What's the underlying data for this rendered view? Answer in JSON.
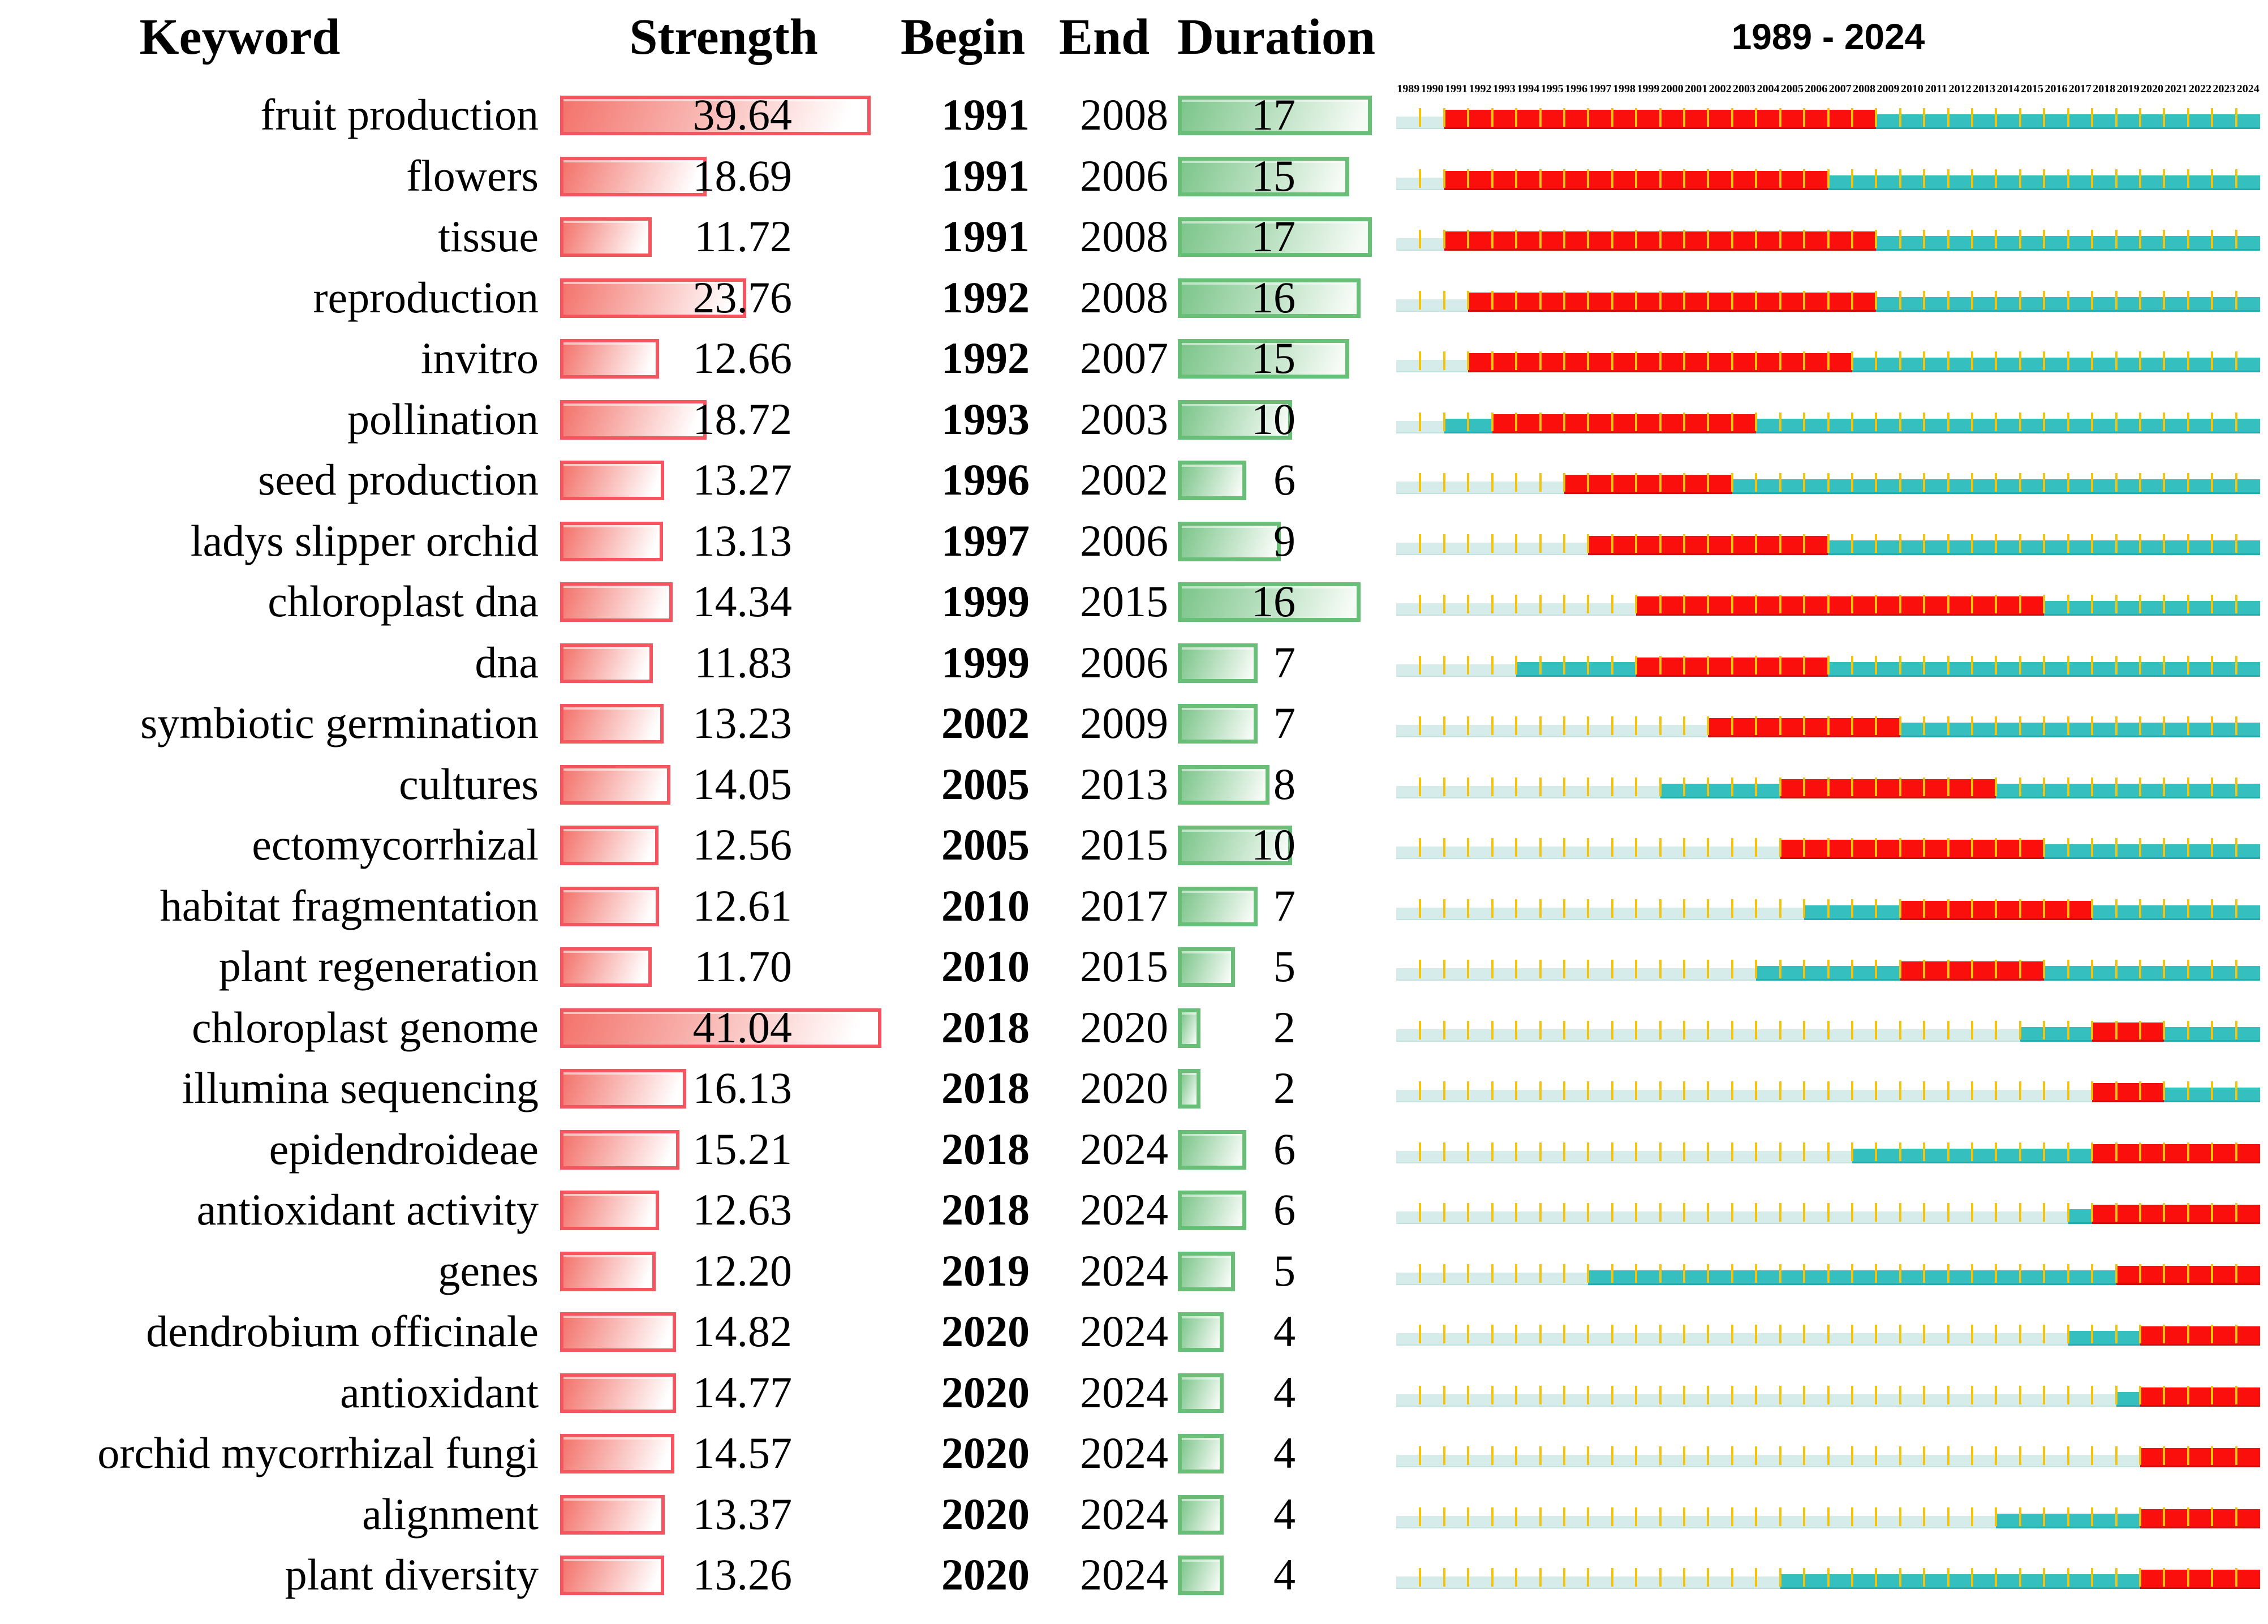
{
  "header": {
    "keyword": "Keyword",
    "strength": "Strength",
    "begin": "Begin",
    "end": "End",
    "duration": "Duration",
    "timeline_title": "1989 - 2024"
  },
  "colors": {
    "burst_red": "#fa0f0c",
    "presence_teal": "#35bfbf",
    "pre_appearance_pale": "#d5eceb",
    "year_tick_gold": "#f2c410",
    "strength_bar_border": "#f4555f",
    "strength_bar_fill": "#f3736b",
    "duration_bar_border": "#69bf77",
    "duration_bar_fill": "#7cc58a"
  },
  "chart_data": {
    "type": "table",
    "subtype": "keyword-burst-timeline",
    "title": "1989 - 2024",
    "columns": [
      "Keyword",
      "Strength",
      "Begin",
      "End",
      "Duration",
      "1989 - 2024"
    ],
    "x_axis": {
      "start": 1989,
      "end": 2024
    },
    "years": [
      1989,
      1990,
      1991,
      1992,
      1993,
      1994,
      1995,
      1996,
      1997,
      1998,
      1999,
      2000,
      2001,
      2002,
      2003,
      2004,
      2005,
      2006,
      2007,
      2008,
      2009,
      2010,
      2011,
      2012,
      2013,
      2014,
      2015,
      2016,
      2017,
      2018,
      2019,
      2020,
      2021,
      2022,
      2023,
      2024
    ],
    "rows": [
      {
        "keyword": "fruit production",
        "strength": "39.64",
        "begin": "1991",
        "end": "2008",
        "duration": "17",
        "first_year": 1991
      },
      {
        "keyword": "flowers",
        "strength": "18.69",
        "begin": "1991",
        "end": "2006",
        "duration": "15",
        "first_year": 1991
      },
      {
        "keyword": "tissue",
        "strength": "11.72",
        "begin": "1991",
        "end": "2008",
        "duration": "17",
        "first_year": 1991
      },
      {
        "keyword": "reproduction",
        "strength": "23.76",
        "begin": "1992",
        "end": "2008",
        "duration": "16",
        "first_year": 1992
      },
      {
        "keyword": "invitro",
        "strength": "12.66",
        "begin": "1992",
        "end": "2007",
        "duration": "15",
        "first_year": 1992
      },
      {
        "keyword": "pollination",
        "strength": "18.72",
        "begin": "1993",
        "end": "2003",
        "duration": "10",
        "first_year": 1991
      },
      {
        "keyword": "seed production",
        "strength": "13.27",
        "begin": "1996",
        "end": "2002",
        "duration": "6",
        "first_year": 1996
      },
      {
        "keyword": "ladys slipper orchid",
        "strength": "13.13",
        "begin": "1997",
        "end": "2006",
        "duration": "9",
        "first_year": 1997
      },
      {
        "keyword": "chloroplast dna",
        "strength": "14.34",
        "begin": "1999",
        "end": "2015",
        "duration": "16",
        "first_year": 1999
      },
      {
        "keyword": "dna",
        "strength": "11.83",
        "begin": "1999",
        "end": "2006",
        "duration": "7",
        "first_year": 1994
      },
      {
        "keyword": "symbiotic germination",
        "strength": "13.23",
        "begin": "2002",
        "end": "2009",
        "duration": "7",
        "first_year": 2002
      },
      {
        "keyword": "cultures",
        "strength": "14.05",
        "begin": "2005",
        "end": "2013",
        "duration": "8",
        "first_year": 2000
      },
      {
        "keyword": "ectomycorrhizal",
        "strength": "12.56",
        "begin": "2005",
        "end": "2015",
        "duration": "10",
        "first_year": 2005
      },
      {
        "keyword": "habitat fragmentation",
        "strength": "12.61",
        "begin": "2010",
        "end": "2017",
        "duration": "7",
        "first_year": 2006
      },
      {
        "keyword": "plant regeneration",
        "strength": "11.70",
        "begin": "2010",
        "end": "2015",
        "duration": "5",
        "first_year": 2004
      },
      {
        "keyword": "chloroplast genome",
        "strength": "41.04",
        "begin": "2018",
        "end": "2020",
        "duration": "2",
        "first_year": 2015
      },
      {
        "keyword": "illumina sequencing",
        "strength": "16.13",
        "begin": "2018",
        "end": "2020",
        "duration": "2",
        "first_year": 2018
      },
      {
        "keyword": "epidendroideae",
        "strength": "15.21",
        "begin": "2018",
        "end": "2024",
        "duration": "6",
        "first_year": 2008
      },
      {
        "keyword": "antioxidant activity",
        "strength": "12.63",
        "begin": "2018",
        "end": "2024",
        "duration": "6",
        "first_year": 2017
      },
      {
        "keyword": "genes",
        "strength": "12.20",
        "begin": "2019",
        "end": "2024",
        "duration": "5",
        "first_year": 1997
      },
      {
        "keyword": "dendrobium officinale",
        "strength": "14.82",
        "begin": "2020",
        "end": "2024",
        "duration": "4",
        "first_year": 2017
      },
      {
        "keyword": "antioxidant",
        "strength": "14.77",
        "begin": "2020",
        "end": "2024",
        "duration": "4",
        "first_year": 2019
      },
      {
        "keyword": "orchid mycorrhizal fungi",
        "strength": "14.57",
        "begin": "2020",
        "end": "2024",
        "duration": "4",
        "first_year": 2020
      },
      {
        "keyword": "alignment",
        "strength": "13.37",
        "begin": "2020",
        "end": "2024",
        "duration": "4",
        "first_year": 2014
      },
      {
        "keyword": "plant diversity",
        "strength": "13.26",
        "begin": "2020",
        "end": "2024",
        "duration": "4",
        "first_year": 2005
      }
    ]
  }
}
